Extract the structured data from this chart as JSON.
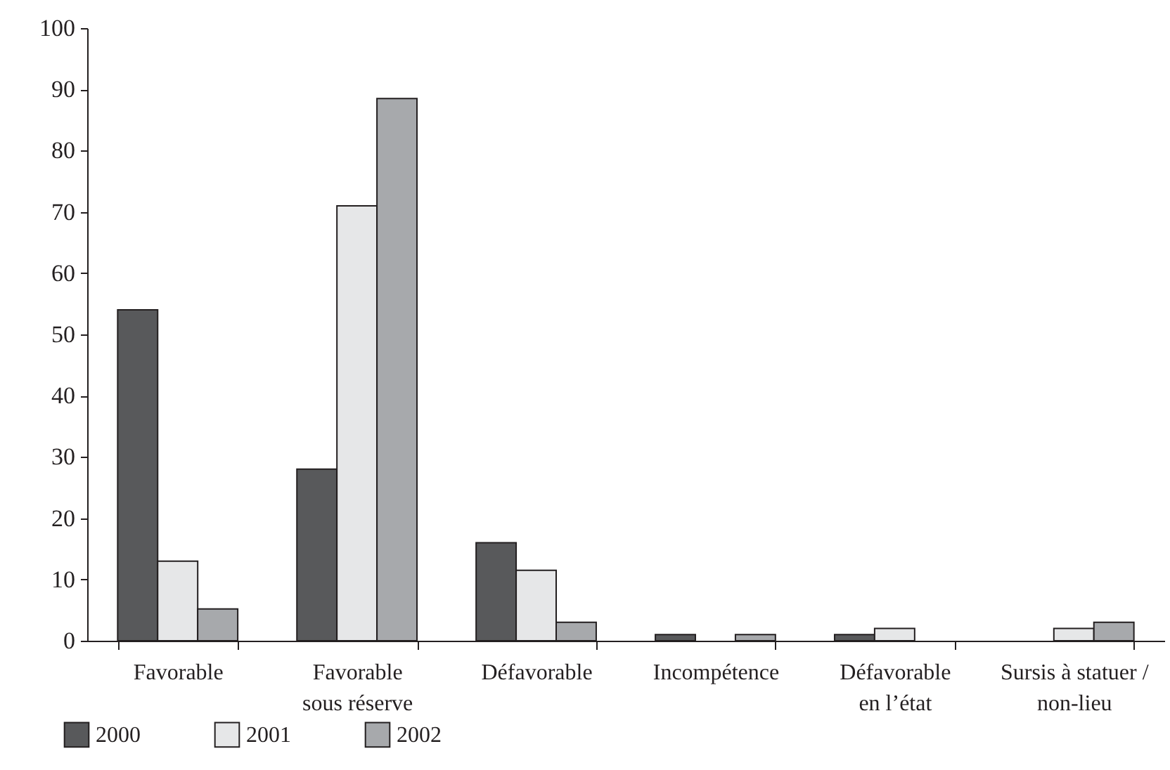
{
  "chart_data": {
    "type": "bar",
    "categories": [
      "Favorable",
      "Favorable\nsous réserve",
      "Défavorable",
      "Incompétence",
      "Défavorable\nen l’état",
      "Sursis à statuer /\nnon-lieu"
    ],
    "series": [
      {
        "name": "2000",
        "color": "#58595b",
        "values": [
          54,
          28,
          16,
          1,
          1,
          0
        ]
      },
      {
        "name": "2001",
        "color": "#e6e7e8",
        "values": [
          13,
          71,
          11.5,
          0,
          2,
          2
        ]
      },
      {
        "name": "2002",
        "color": "#a7a9ac",
        "values": [
          5.2,
          88.5,
          3,
          1,
          0,
          3
        ]
      }
    ],
    "ylim": [
      0,
      100
    ],
    "yticks": [
      0,
      10,
      20,
      30,
      40,
      50,
      60,
      70,
      80,
      90,
      100
    ],
    "grid": false,
    "legend": "bottom left"
  }
}
